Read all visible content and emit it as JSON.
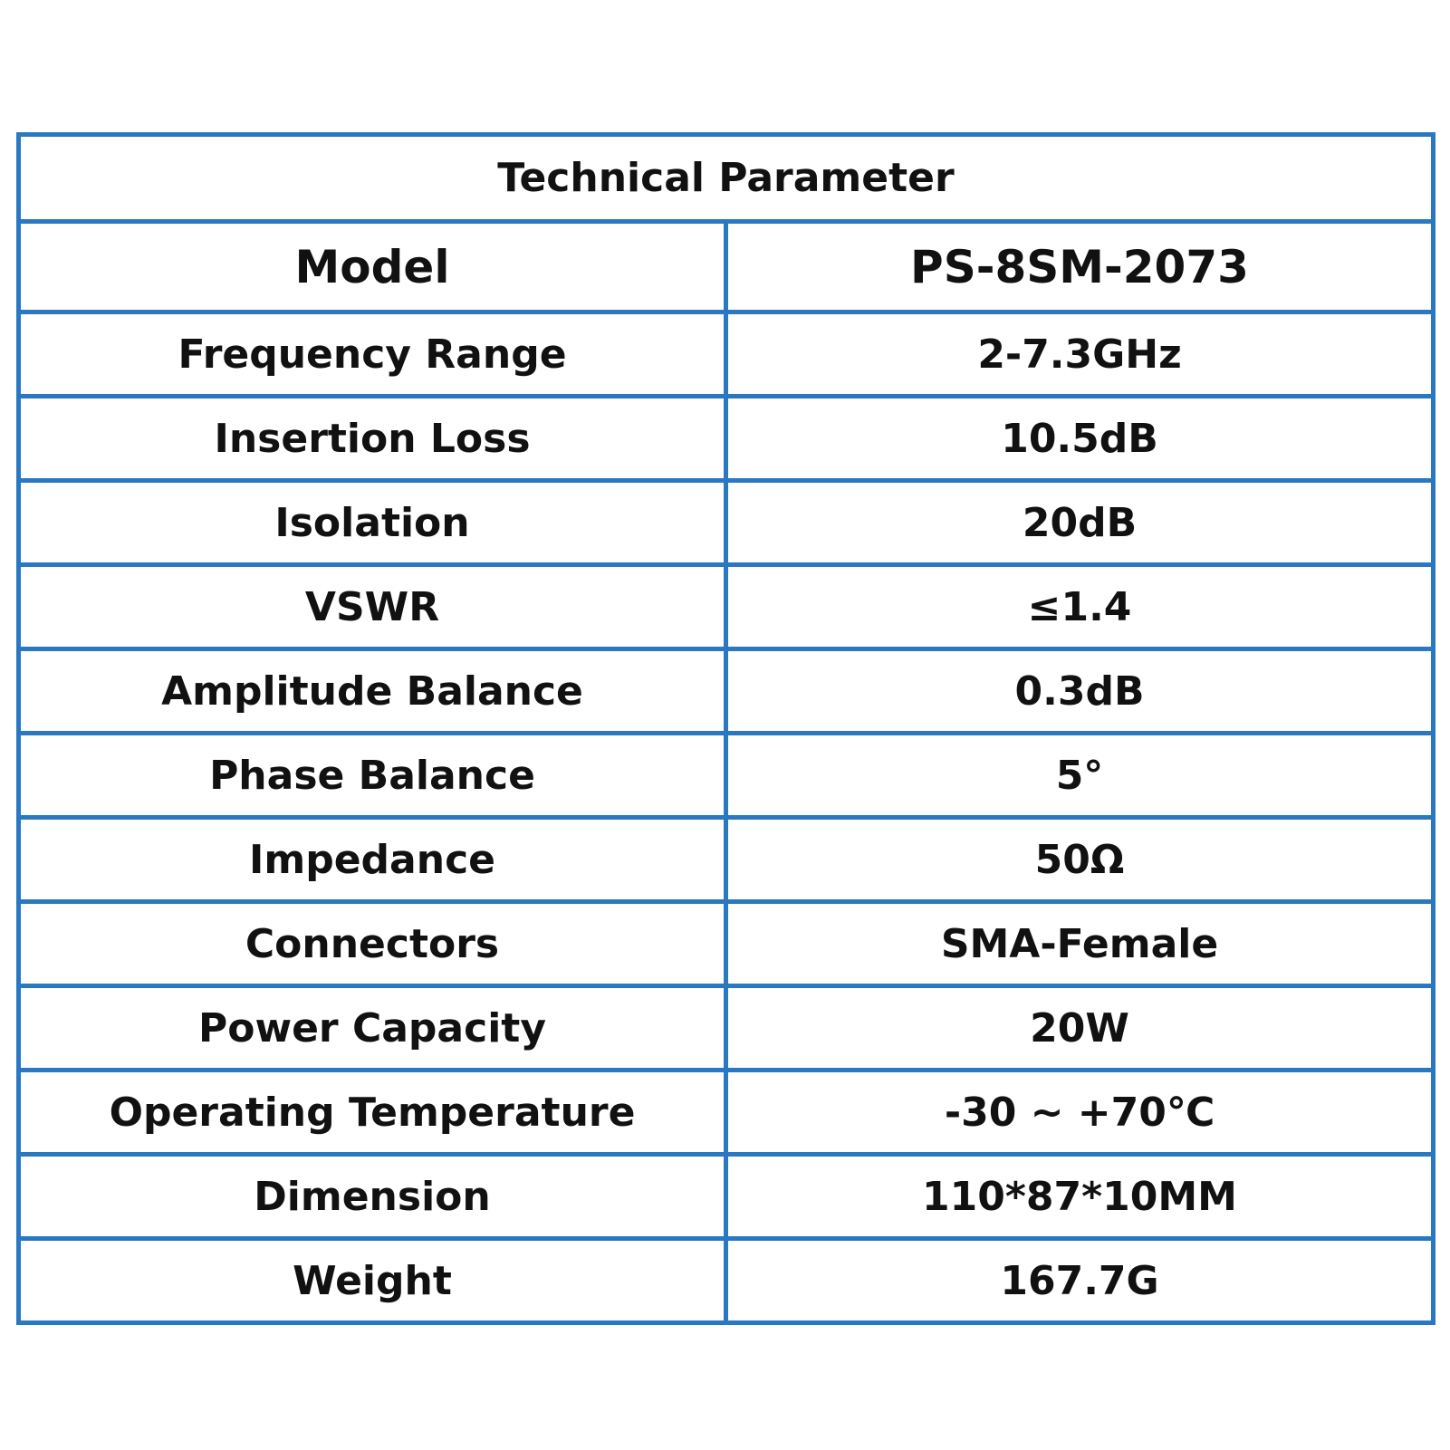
{
  "table": {
    "title": "Technical Parameter",
    "rows": [
      {
        "label": "Model",
        "value": "PS-8SM-2073"
      },
      {
        "label": "Frequency Range",
        "value": "2-7.3GHz"
      },
      {
        "label": "Insertion Loss",
        "value": "10.5dB"
      },
      {
        "label": "Isolation",
        "value": "20dB"
      },
      {
        "label": "VSWR",
        "value": "≤1.4"
      },
      {
        "label": "Amplitude Balance",
        "value": "0.3dB"
      },
      {
        "label": "Phase Balance",
        "value": "5°"
      },
      {
        "label": "Impedance",
        "value": "50Ω"
      },
      {
        "label": "Connectors",
        "value": "SMA-Female"
      },
      {
        "label": "Power Capacity",
        "value": "20W"
      },
      {
        "label": "Operating Temperature",
        "value": "-30 ~ +70℃"
      },
      {
        "label": "Dimension",
        "value": "110*87*10MM"
      },
      {
        "label": "Weight",
        "value": "167.7G"
      }
    ]
  },
  "colors": {
    "border": "#2a78c2",
    "text": "#111111",
    "background": "#ffffff"
  }
}
